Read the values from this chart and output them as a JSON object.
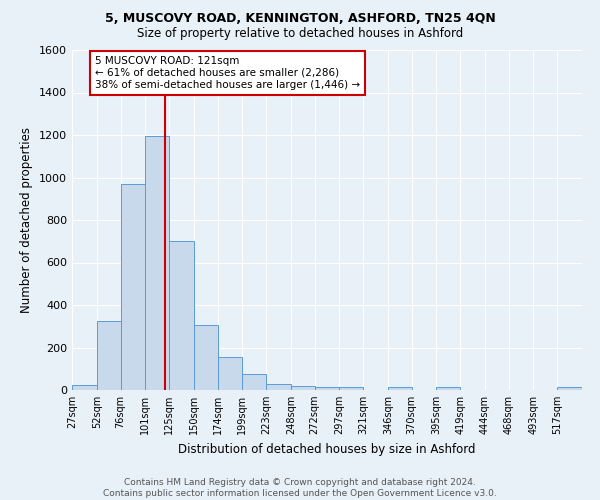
{
  "title1": "5, MUSCOVY ROAD, KENNINGTON, ASHFORD, TN25 4QN",
  "title2": "Size of property relative to detached houses in Ashford",
  "xlabel": "Distribution of detached houses by size in Ashford",
  "ylabel": "Number of detached properties",
  "footnote1": "Contains HM Land Registry data © Crown copyright and database right 2024.",
  "footnote2": "Contains public sector information licensed under the Open Government Licence v3.0.",
  "bin_labels": [
    "27sqm",
    "52sqm",
    "76sqm",
    "101sqm",
    "125sqm",
    "150sqm",
    "174sqm",
    "199sqm",
    "223sqm",
    "248sqm",
    "272sqm",
    "297sqm",
    "321sqm",
    "346sqm",
    "370sqm",
    "395sqm",
    "419sqm",
    "444sqm",
    "468sqm",
    "493sqm",
    "517sqm"
  ],
  "bar_values": [
    25,
    325,
    970,
    1195,
    700,
    305,
    155,
    75,
    30,
    20,
    12,
    12,
    0,
    12,
    0,
    12,
    0,
    0,
    0,
    0,
    12
  ],
  "bar_color": "#c8d9eb",
  "bar_edge_color": "#5b9bd5",
  "property_line_x": 121,
  "property_line_color": "#cc0000",
  "annotation_line1": "5 MUSCOVY ROAD: 121sqm",
  "annotation_line2": "← 61% of detached houses are smaller (2,286)",
  "annotation_line3": "38% of semi-detached houses are larger (1,446) →",
  "annotation_box_color": "#ffffff",
  "annotation_box_edge": "#cc0000",
  "ylim": [
    0,
    1600
  ],
  "yticks": [
    0,
    200,
    400,
    600,
    800,
    1000,
    1200,
    1400,
    1600
  ],
  "background_color": "#e8f0f8",
  "grid_color": "#ffffff",
  "bin_edges": [
    27,
    52,
    76,
    101,
    125,
    150,
    174,
    199,
    223,
    248,
    272,
    297,
    321,
    346,
    370,
    395,
    419,
    444,
    468,
    493,
    517,
    542
  ]
}
